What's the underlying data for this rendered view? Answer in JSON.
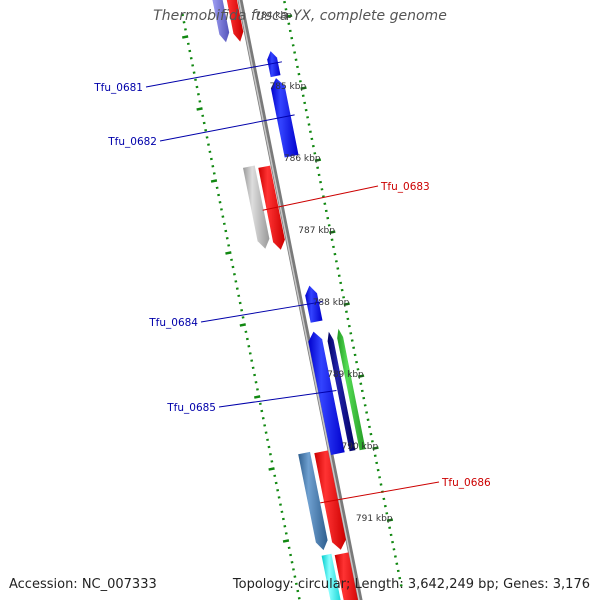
{
  "title": "Thermobifida fusca YX, complete genome",
  "accession": "Accession: NC_007333",
  "summary": "Topology: circular; Length: 3,642,249 bp; Genes: 3,176",
  "ticks": [
    {
      "label": "784 kbp",
      "partial": true
    },
    {
      "label": "785 kbp"
    },
    {
      "label": "786 kbp"
    },
    {
      "label": "787 kbp"
    },
    {
      "label": "788 kbp"
    },
    {
      "label": "789 kbp"
    },
    {
      "label": "790 kbp"
    },
    {
      "label": "791 kbp"
    }
  ],
  "gene_labels": [
    {
      "name": "Tfu_0681",
      "strand": "reverse",
      "color": "#0000aa"
    },
    {
      "name": "Tfu_0682",
      "strand": "reverse",
      "color": "#0000aa"
    },
    {
      "name": "Tfu_0683",
      "strand": "forward",
      "color": "#cc0000"
    },
    {
      "name": "Tfu_0684",
      "strand": "reverse",
      "color": "#0000aa"
    },
    {
      "name": "Tfu_0685",
      "strand": "reverse",
      "color": "#0000aa"
    },
    {
      "name": "Tfu_0686",
      "strand": "forward",
      "color": "#cc0000"
    }
  ],
  "colors": {
    "backbone": "#999999",
    "tick": "#118811",
    "reverse_gene": "#0000ff",
    "forward_gene": "#ff0000",
    "gray_feature": "#bbbbbb",
    "steel_feature": "#4682b4",
    "green_feature": "#33cc33",
    "navy_feature": "#000080",
    "cyan_feature": "#00ffff",
    "lavender_feature": "#7777dd"
  }
}
